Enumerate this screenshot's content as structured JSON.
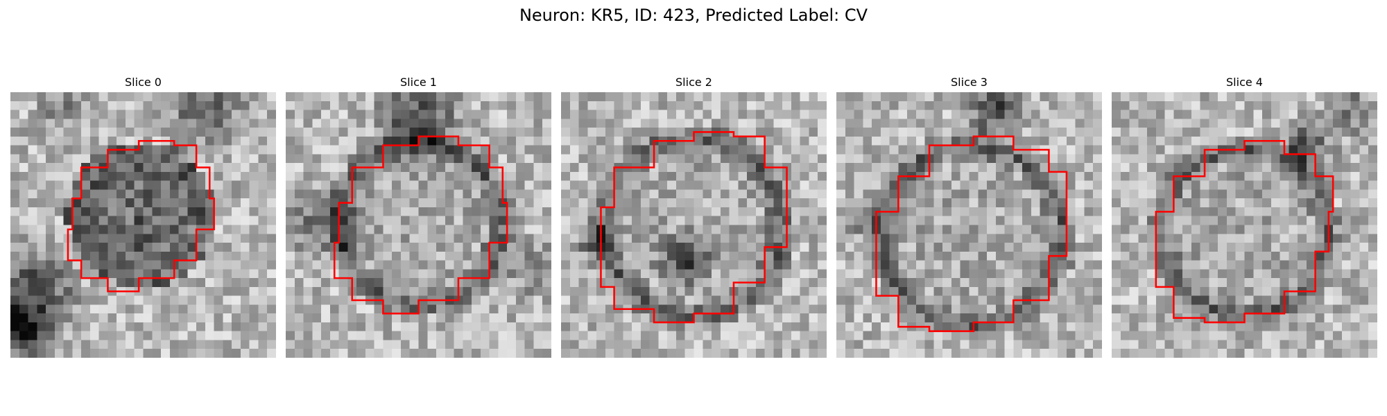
{
  "figure": {
    "title": "Neuron: KR5, ID: 423, Predicted Label: CV"
  },
  "colors": {
    "contour": "#ff0000",
    "background": "#ffffff"
  },
  "slices": [
    {
      "title": "Slice 0"
    },
    {
      "title": "Slice 1"
    },
    {
      "title": "Slice 2"
    },
    {
      "title": "Slice 3"
    },
    {
      "title": "Slice 4"
    }
  ]
}
